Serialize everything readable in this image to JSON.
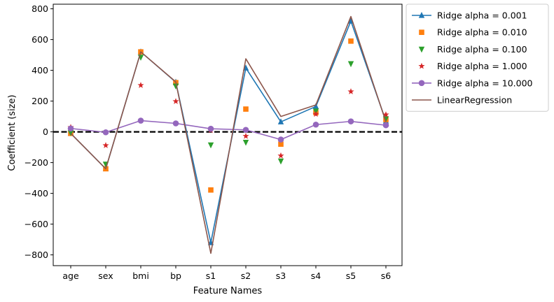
{
  "chart_data": {
    "type": "line",
    "categories": [
      "age",
      "sex",
      "bmi",
      "bp",
      "s1",
      "s2",
      "s3",
      "s4",
      "s5",
      "s6"
    ],
    "xlabel": "Feature Names",
    "ylabel": "Coefficient (size)",
    "ylim": [
      -870,
      830
    ],
    "yticks": [
      -800,
      -600,
      -400,
      -200,
      0,
      200,
      400,
      600,
      800
    ],
    "grid": false,
    "legend_position": "outside-right",
    "reference_line": {
      "y": 0,
      "style": "dashed",
      "color": "#000000"
    },
    "series": [
      {
        "name": "Ridge alpha = 0.001",
        "marker": "triangle-up",
        "line": true,
        "color": "#1f77b4",
        "values": [
          -10,
          -240,
          520,
          323,
          -720,
          415,
          65,
          165,
          720,
          70
        ]
      },
      {
        "name": "Ridge alpha = 0.010",
        "marker": "square",
        "line": false,
        "color": "#ff7f0e",
        "values": [
          -10,
          -240,
          520,
          320,
          -378,
          148,
          -80,
          125,
          590,
          80
        ]
      },
      {
        "name": "Ridge alpha = 0.100",
        "marker": "triangle-down",
        "line": false,
        "color": "#2ca02c",
        "values": [
          -5,
          -210,
          485,
          298,
          -85,
          -68,
          -190,
          135,
          443,
          85
        ]
      },
      {
        "name": "Ridge alpha = 1.000",
        "marker": "star",
        "line": false,
        "color": "#d62728",
        "values": [
          30,
          -88,
          303,
          198,
          10,
          -28,
          -155,
          115,
          262,
          112
        ]
      },
      {
        "name": "Ridge alpha = 10.000",
        "marker": "circle",
        "line": true,
        "color": "#9467bd",
        "values": [
          22,
          -3,
          73,
          55,
          20,
          13,
          -50,
          47,
          68,
          43
        ]
      },
      {
        "name": "LinearRegression",
        "marker": "none",
        "line": true,
        "color": "#8c564b",
        "values": [
          -10,
          -240,
          520,
          325,
          -790,
          475,
          100,
          175,
          750,
          65
        ]
      }
    ]
  }
}
